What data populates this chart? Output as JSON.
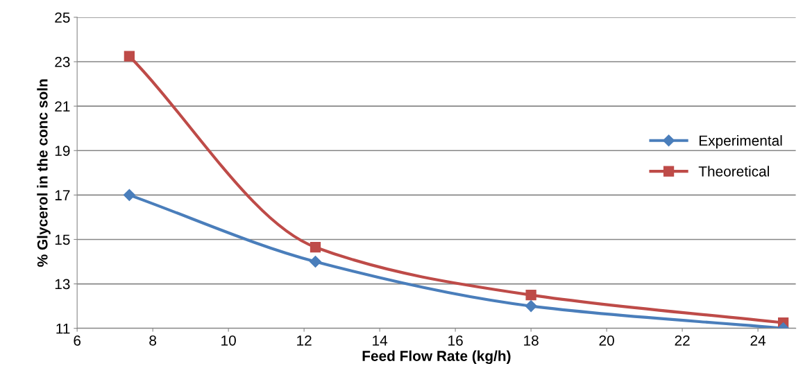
{
  "chart_data": {
    "type": "line",
    "xlabel": "Feed Flow Rate (kg/h)",
    "ylabel": "% Glycerol in the conc soln",
    "x": [
      7.38,
      12.3,
      18.0,
      24.67
    ],
    "series": [
      {
        "name": "Experimental",
        "color": "#4a7ebb",
        "marker": "diamond",
        "values": [
          17.0,
          14.0,
          12.0,
          11.0
        ]
      },
      {
        "name": "Theoretical",
        "color": "#be4b48",
        "marker": "square",
        "values": [
          23.25,
          14.65,
          12.5,
          11.25
        ]
      }
    ],
    "xlim": [
      6,
      25
    ],
    "xticks": [
      6,
      8,
      10,
      12,
      14,
      16,
      18,
      20,
      22,
      24
    ],
    "ylim": [
      11,
      25
    ],
    "yticks": [
      11,
      13,
      15,
      17,
      19,
      21,
      23,
      25
    ],
    "grid": "y",
    "legend": "right",
    "line_style": "solid"
  }
}
